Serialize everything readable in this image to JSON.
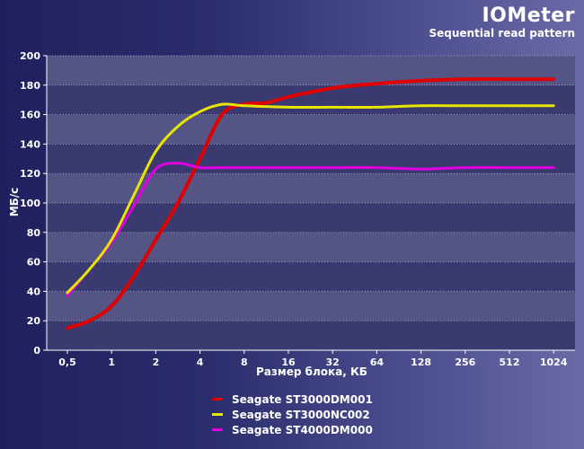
{
  "chart_data": {
    "type": "line",
    "title": "IOMeter",
    "subtitle": "Sequential read pattern",
    "xlabel": "Размер блока, КБ",
    "ylabel": "МБ/с",
    "ylim": [
      0,
      200
    ],
    "yticks": [
      "0",
      "20",
      "40",
      "60",
      "80",
      "100",
      "120",
      "140",
      "160",
      "180",
      "200"
    ],
    "categories": [
      "0,5",
      "1",
      "2",
      "4",
      "8",
      "16",
      "32",
      "64",
      "128",
      "256",
      "512",
      "1024"
    ],
    "series": [
      {
        "name": "Seagate ST3000DM001",
        "color": "#e00000",
        "x": [
          0,
          0.5,
          1,
          1.5,
          2,
          2.5,
          3,
          3.5,
          4,
          4.5,
          5,
          6,
          7,
          8,
          9,
          10,
          11
        ],
        "values": [
          15,
          20,
          30,
          50,
          75,
          100,
          130,
          160,
          167,
          168,
          172,
          178,
          181,
          183,
          184,
          184,
          184
        ]
      },
      {
        "name": "Seagate ST3000NC002",
        "color": "#e6e600",
        "x": [
          0,
          0.5,
          1,
          1.5,
          2,
          2.5,
          3,
          3.5,
          4,
          5,
          6,
          7,
          8,
          9,
          10,
          11
        ],
        "values": [
          39,
          55,
          75,
          105,
          135,
          152,
          162,
          167,
          166,
          165,
          165,
          165,
          166,
          166,
          166,
          166
        ]
      },
      {
        "name": "Seagate ST4000DM000",
        "color": "#e000e0",
        "x": [
          0,
          0.5,
          1,
          1.5,
          2,
          2.5,
          3,
          3.5,
          4,
          5,
          6,
          7,
          8,
          9,
          10,
          11
        ],
        "values": [
          37,
          55,
          73,
          98,
          123,
          127,
          124,
          124,
          124,
          124,
          124,
          124,
          123,
          124,
          124,
          124
        ]
      }
    ]
  }
}
